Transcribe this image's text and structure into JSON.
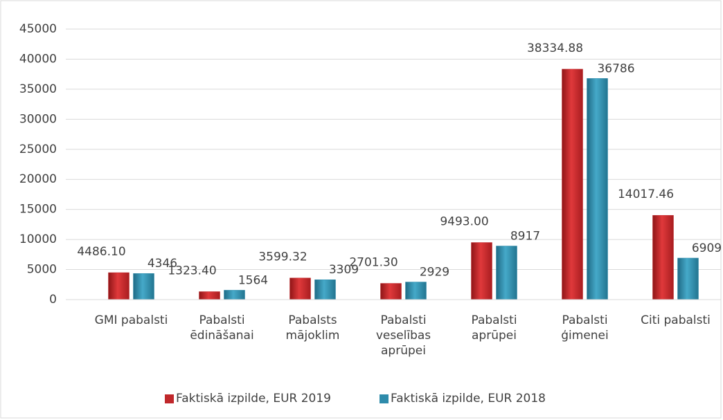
{
  "chart_data": {
    "type": "bar",
    "categories": [
      "GMI pabalsti",
      "Pabalsti ēdināšanai",
      "Pabalsts mājoklim",
      "Pabalsti veselības aprūpei",
      "Pabalsti aprūpei",
      "Pabalsti ģimenei",
      "Citi pabalsti"
    ],
    "series": [
      {
        "name": "Faktiskā izpilde, EUR  2019",
        "color": "#c0282b",
        "values": [
          4486.1,
          1323.4,
          3599.32,
          2701.3,
          9493,
          38334.88,
          14017.46
        ],
        "value_labels": [
          "4486.10",
          "1323.40",
          "3599.32",
          "2701.30",
          "9493.00",
          "38334.88",
          "14017.46"
        ]
      },
      {
        "name": "Faktiskā izpilde, EUR  2018",
        "color": "#2e8bab",
        "values": [
          4346,
          1564,
          3309,
          2929,
          8917,
          36786,
          6909
        ]
      }
    ],
    "ylim": [
      0,
      45000
    ],
    "yticks": [
      0,
      5000,
      10000,
      15000,
      20000,
      25000,
      30000,
      35000,
      40000,
      45000
    ],
    "grid": true,
    "legend": "bottom"
  }
}
